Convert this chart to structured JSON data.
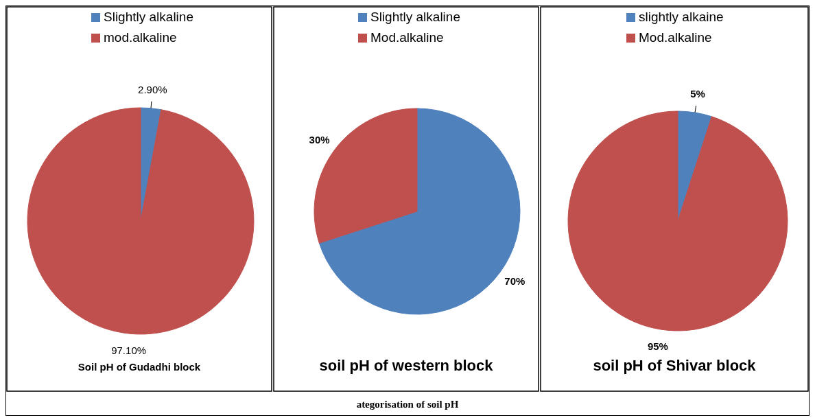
{
  "chart_data": [
    {
      "type": "pie",
      "title": "Soil pH of Gudadhi block",
      "categories": [
        "Slightly alkaline",
        "mod.alkaline"
      ],
      "values": [
        2.9,
        97.1
      ],
      "value_labels": [
        "2.90%",
        "97.10%"
      ],
      "colors": [
        "#4f81bd",
        "#c0504d"
      ],
      "legend": "top"
    },
    {
      "type": "pie",
      "title": "soil pH of western block",
      "categories": [
        "Slightly alkaline",
        "Mod.alkaline"
      ],
      "values": [
        70,
        30
      ],
      "value_labels": [
        "70%",
        "30%"
      ],
      "colors": [
        "#4f81bd",
        "#c0504d"
      ],
      "legend": "top"
    },
    {
      "type": "pie",
      "title": "soil pH of Shivar block",
      "categories": [
        "slightly alkaine",
        "Mod.alkaline"
      ],
      "values": [
        5,
        95
      ],
      "value_labels": [
        "5%",
        "95%"
      ],
      "colors": [
        "#4f81bd",
        "#c0504d"
      ],
      "legend": "top"
    },
    {
      "type": "other",
      "title": "ategorisation of soil pH"
    }
  ]
}
